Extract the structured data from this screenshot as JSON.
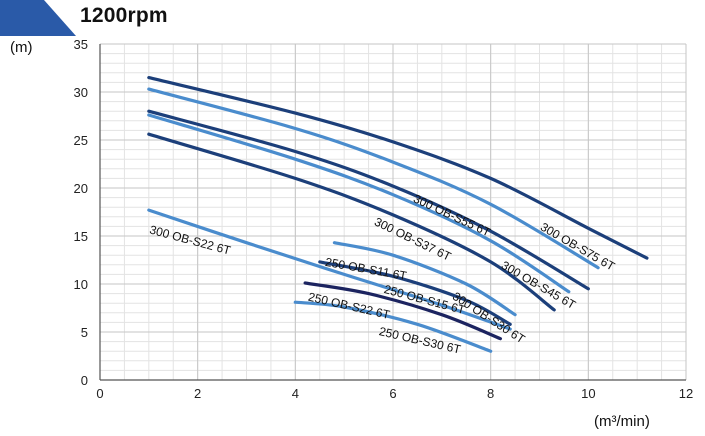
{
  "banner_color": "#2a5aa8",
  "chart_data": {
    "type": "line",
    "title": "1200rpm",
    "ylabel": "(m)",
    "xlabel": "(m³/min)",
    "xlim": [
      0,
      12
    ],
    "ylim": [
      0,
      35
    ],
    "x_ticks": [
      0,
      2,
      4,
      6,
      8,
      10,
      12
    ],
    "y_ticks": [
      0,
      5,
      10,
      15,
      20,
      25,
      30,
      35
    ],
    "grid": true,
    "series": [
      {
        "name": "300 OB-S75 6T",
        "color": "#1c3f7a",
        "x": [
          1,
          4,
          6,
          8,
          10,
          11.2
        ],
        "y": [
          31.5,
          27.8,
          24.8,
          21,
          15.8,
          12.7
        ]
      },
      {
        "name": "300 OB-S55 6T",
        "color": "#4a8ccd",
        "x": [
          1,
          4,
          6,
          8,
          10.2
        ],
        "y": [
          30.3,
          26.2,
          22.7,
          18.3,
          11.7
        ]
      },
      {
        "name": "300 OB-S45 6T",
        "color": "#1c3f7a",
        "x": [
          1,
          4,
          6,
          8,
          10
        ],
        "y": [
          28,
          23.8,
          20.2,
          15.5,
          9.5
        ]
      },
      {
        "name": "300 OB-S37 6T",
        "color": "#4a8ccd",
        "x": [
          1,
          4,
          6,
          8,
          9.6
        ],
        "y": [
          27.6,
          23,
          19.3,
          14.5,
          9.2
        ]
      },
      {
        "name": "300 OB-S30 6T",
        "color": "#1c3f7a",
        "x": [
          1,
          4,
          6,
          8,
          9.3
        ],
        "y": [
          25.6,
          21,
          17.2,
          12.3,
          7.3
        ]
      },
      {
        "name": "300 OB-S22 6T",
        "color": "#4a8ccd",
        "x": [
          1,
          3,
          5,
          7,
          8.4
        ],
        "y": [
          17.7,
          14.3,
          11,
          7.8,
          5.3
        ]
      },
      {
        "name": "250 OB-S11 6T",
        "color": "#4a8ccd",
        "x": [
          4.8,
          6,
          7.5,
          8.5
        ],
        "y": [
          14.3,
          13,
          10,
          6.8
        ]
      },
      {
        "name": "250 OB-S15 6T",
        "color": "#1c3f7a",
        "x": [
          4.5,
          6,
          7.5,
          8.4
        ],
        "y": [
          12.3,
          10.8,
          8.3,
          5.8
        ]
      },
      {
        "name": "250 OB-S22 6T",
        "color": "#1c2460",
        "x": [
          4.2,
          5.5,
          7,
          8.2
        ],
        "y": [
          10.1,
          9,
          6.8,
          4.3
        ]
      },
      {
        "name": "250 OB-S30 6T",
        "color": "#4a8ccd",
        "x": [
          4,
          5,
          6.5,
          8
        ],
        "y": [
          8.1,
          7.6,
          5.8,
          3.0
        ]
      }
    ],
    "annotations": [
      {
        "text": "300 OB-S75 6T",
        "series": "300 OB-S75 6T",
        "x": 9.0,
        "y": 15.7,
        "angle": 30
      },
      {
        "text": "300 OB-S55 6T",
        "series": "300 OB-S55 6T",
        "x": 6.4,
        "y": 18.6,
        "angle": 25
      },
      {
        "text": "300 OB-S45 6T",
        "series": "300 OB-S45 6T",
        "x": 8.2,
        "y": 11.7,
        "angle": 30
      },
      {
        "text": "300 OB-S37 6T",
        "series": "300 OB-S37 6T",
        "x": 5.6,
        "y": 16.2,
        "angle": 26
      },
      {
        "text": "300 OB-S30 6T",
        "series": "300 OB-S30 6T",
        "x": 7.2,
        "y": 8.5,
        "angle": 33
      },
      {
        "text": "300 OB-S22 6T",
        "series": "300 OB-S22 6T",
        "x": 1.0,
        "y": 15.3,
        "angle": 15
      },
      {
        "text": "250 OB-S11 6T",
        "series": "250 OB-S11 6T",
        "x": 4.6,
        "y": 11.9,
        "angle": 10
      },
      {
        "text": "250 OB-S15 6T",
        "series": "250 OB-S15 6T",
        "x": 5.8,
        "y": 9.1,
        "angle": 15
      },
      {
        "text": "250 OB-S22 6T",
        "series": "250 OB-S22 6T",
        "x": 4.25,
        "y": 8.3,
        "angle": 13
      },
      {
        "text": "250 OB-S30 6T",
        "series": "250 OB-S30 6T",
        "x": 5.7,
        "y": 4.7,
        "angle": 13
      }
    ]
  }
}
